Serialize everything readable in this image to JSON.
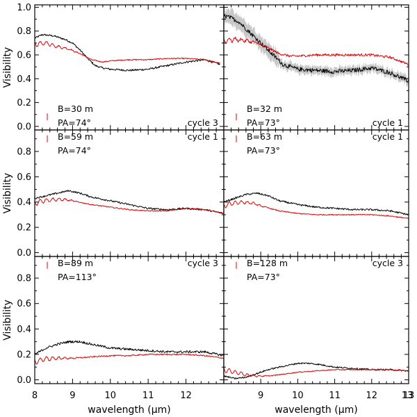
{
  "chart_data": {
    "type": "line",
    "ylabel": "Visibility",
    "xlabel": "wavelength (μm)",
    "xlim": [
      8,
      13
    ],
    "x_ticks": [
      "8",
      "9",
      "10",
      "11",
      "12",
      "13"
    ],
    "colors": {
      "observed": "#000000",
      "model": "#e00000",
      "error_band": "#9a9a9a"
    },
    "panels": [
      {
        "ylim": [
          -0.03,
          1.02
        ],
        "y_ticks": [
          "0.0",
          "0.2",
          "0.4",
          "0.6",
          "0.8",
          "1.0"
        ],
        "baseline": "B=30 m",
        "pa": "PA=74°",
        "cycle": "cycle 3",
        "error_bar_v": 0.08,
        "noise": 0.008,
        "band": 0.0,
        "series": [
          {
            "role": "observed",
            "x": [
              8.0,
              8.2,
              8.5,
              8.8,
              9.0,
              9.2,
              9.4,
              9.6,
              9.8,
              10.0,
              10.5,
              11.0,
              11.5,
              12.0,
              12.5,
              12.9
            ],
            "y": [
              0.74,
              0.77,
              0.76,
              0.73,
              0.7,
              0.64,
              0.57,
              0.51,
              0.49,
              0.48,
              0.47,
              0.48,
              0.51,
              0.54,
              0.56,
              0.52
            ]
          },
          {
            "role": "model",
            "x": [
              8.0,
              8.3,
              8.6,
              8.9,
              9.2,
              9.5,
              9.8,
              10.0,
              10.5,
              11.0,
              11.5,
              12.0,
              12.5,
              12.9
            ],
            "y": [
              0.69,
              0.7,
              0.67,
              0.65,
              0.61,
              0.56,
              0.54,
              0.55,
              0.56,
              0.56,
              0.57,
              0.57,
              0.56,
              0.53
            ]
          }
        ]
      },
      {
        "ylim": [
          -0.03,
          1.02
        ],
        "y_ticks": [],
        "baseline": "B=32 m",
        "pa": "PA=73°",
        "cycle": "cycle 1",
        "error_bar_v": 0.08,
        "noise": 0.018,
        "band": 0.07,
        "series": [
          {
            "role": "observed",
            "x": [
              8.0,
              8.2,
              8.4,
              8.6,
              8.8,
              9.0,
              9.2,
              9.4,
              9.6,
              9.8,
              10.0,
              10.5,
              11.0,
              11.5,
              12.0,
              12.5,
              13.0
            ],
            "y": [
              0.93,
              0.91,
              0.88,
              0.82,
              0.76,
              0.7,
              0.64,
              0.58,
              0.52,
              0.5,
              0.48,
              0.47,
              0.46,
              0.47,
              0.49,
              0.45,
              0.38
            ]
          },
          {
            "role": "model",
            "x": [
              8.0,
              8.3,
              8.6,
              8.9,
              9.2,
              9.5,
              9.8,
              10.0,
              10.5,
              11.0,
              11.5,
              12.0,
              12.5,
              13.0
            ],
            "y": [
              0.72,
              0.73,
              0.72,
              0.7,
              0.66,
              0.61,
              0.59,
              0.59,
              0.6,
              0.6,
              0.6,
              0.6,
              0.58,
              0.52
            ]
          }
        ]
      },
      {
        "ylim": [
          -0.03,
          0.97
        ],
        "y_ticks": [
          "0.0",
          "0.2",
          "0.4",
          "0.6",
          "0.8"
        ],
        "baseline": "B=59 m",
        "pa": "PA=74°",
        "cycle": "cycle 1",
        "error_bar_v": 0.9,
        "noise": 0.007,
        "band": 0.0,
        "series": [
          {
            "role": "observed",
            "x": [
              8.0,
              8.3,
              8.6,
              8.9,
              9.2,
              9.5,
              10.0,
              10.5,
              11.0,
              11.5,
              12.0,
              12.5,
              13.0
            ],
            "y": [
              0.43,
              0.45,
              0.47,
              0.49,
              0.47,
              0.44,
              0.41,
              0.38,
              0.35,
              0.34,
              0.35,
              0.34,
              0.31
            ]
          },
          {
            "role": "model",
            "x": [
              8.0,
              8.2,
              8.5,
              8.8,
              9.0,
              9.5,
              10.0,
              10.5,
              11.0,
              11.5,
              12.0,
              12.5,
              13.0
            ],
            "y": [
              0.39,
              0.41,
              0.42,
              0.42,
              0.41,
              0.38,
              0.36,
              0.34,
              0.33,
              0.33,
              0.35,
              0.34,
              0.31
            ]
          }
        ]
      },
      {
        "ylim": [
          -0.03,
          0.97
        ],
        "y_ticks": [],
        "baseline": "B=63 m",
        "pa": "PA=73°",
        "cycle": "cycle 1",
        "error_bar_v": 0.9,
        "noise": 0.007,
        "band": 0.0,
        "series": [
          {
            "role": "observed",
            "x": [
              8.0,
              8.3,
              8.6,
              8.9,
              9.2,
              9.5,
              10.0,
              10.5,
              11.0,
              11.5,
              12.0,
              12.5,
              13.0
            ],
            "y": [
              0.4,
              0.43,
              0.46,
              0.47,
              0.45,
              0.41,
              0.38,
              0.36,
              0.35,
              0.34,
              0.34,
              0.33,
              0.3
            ]
          },
          {
            "role": "model",
            "x": [
              8.0,
              8.2,
              8.5,
              8.8,
              9.0,
              9.5,
              10.0,
              10.5,
              11.0,
              11.5,
              12.0,
              12.5,
              13.0
            ],
            "y": [
              0.37,
              0.39,
              0.4,
              0.39,
              0.37,
              0.33,
              0.31,
              0.3,
              0.3,
              0.3,
              0.3,
              0.29,
              0.27
            ]
          }
        ]
      },
      {
        "ylim": [
          -0.03,
          0.97
        ],
        "y_ticks": [
          "0.0",
          "0.2",
          "0.4",
          "0.6",
          "0.8"
        ],
        "baseline": "B=89 m",
        "pa": "PA=113°",
        "cycle": "cycle 3",
        "error_bar_v": 0.9,
        "noise": 0.009,
        "band": 0.0,
        "series": [
          {
            "role": "observed",
            "x": [
              8.0,
              8.3,
              8.6,
              8.9,
              9.2,
              9.5,
              10.0,
              10.5,
              11.0,
              11.5,
              12.0,
              12.5,
              13.0
            ],
            "y": [
              0.2,
              0.25,
              0.28,
              0.3,
              0.3,
              0.28,
              0.25,
              0.24,
              0.23,
              0.22,
              0.22,
              0.22,
              0.19
            ]
          },
          {
            "role": "model",
            "x": [
              8.0,
              8.2,
              8.5,
              8.8,
              9.0,
              9.5,
              10.0,
              10.5,
              11.0,
              11.5,
              12.0,
              12.5,
              13.0
            ],
            "y": [
              0.14,
              0.16,
              0.17,
              0.17,
              0.17,
              0.18,
              0.19,
              0.19,
              0.2,
              0.2,
              0.2,
              0.19,
              0.17
            ]
          }
        ]
      },
      {
        "ylim": [
          -0.03,
          0.97
        ],
        "y_ticks": [],
        "baseline": "B=128 m",
        "pa": "PA=73°",
        "cycle": "cycle 3",
        "error_bar_v": 0.9,
        "noise": 0.006,
        "band": 0.0,
        "series": [
          {
            "role": "observed",
            "x": [
              8.0,
              8.3,
              8.6,
              8.9,
              9.2,
              9.5,
              10.0,
              10.3,
              10.6,
              11.0,
              11.5,
              12.0,
              12.5,
              13.0
            ],
            "y": [
              0.03,
              0.01,
              0.02,
              0.05,
              0.08,
              0.1,
              0.13,
              0.13,
              0.12,
              0.1,
              0.09,
              0.08,
              0.08,
              0.07
            ]
          },
          {
            "role": "model",
            "x": [
              8.0,
              8.3,
              8.6,
              8.9,
              9.2,
              9.5,
              10.0,
              10.5,
              11.0,
              11.5,
              12.0,
              12.5,
              13.0
            ],
            "y": [
              0.08,
              0.06,
              0.04,
              0.03,
              0.03,
              0.04,
              0.06,
              0.07,
              0.08,
              0.08,
              0.08,
              0.08,
              0.07
            ]
          }
        ]
      }
    ]
  }
}
